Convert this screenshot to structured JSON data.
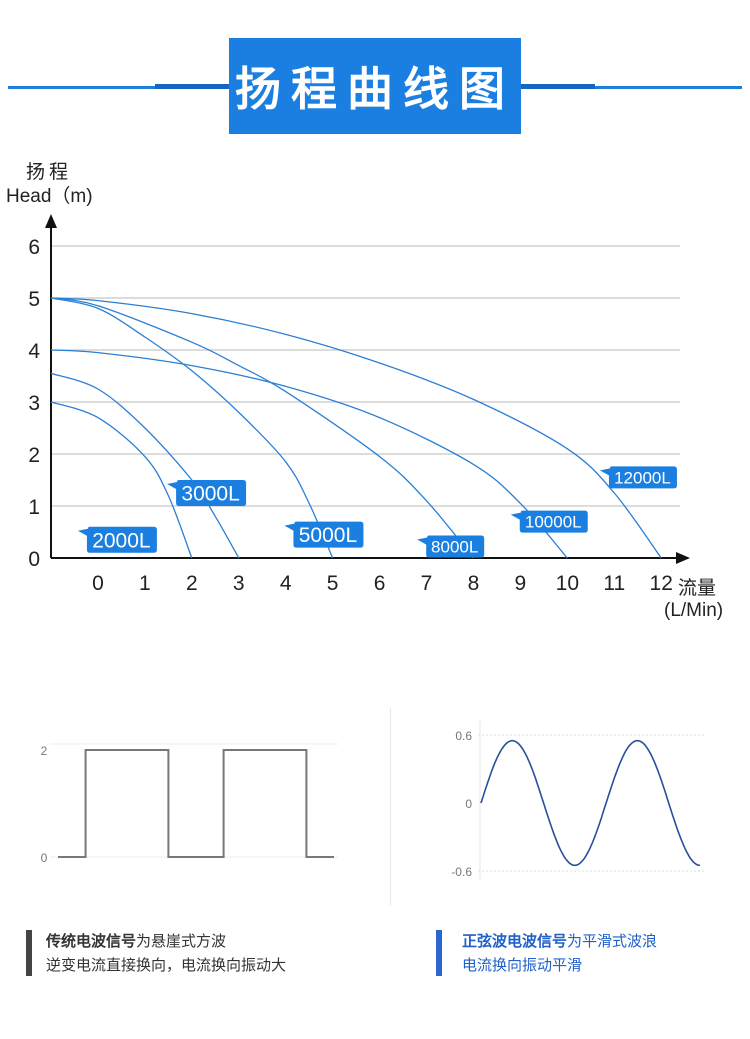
{
  "header": {
    "title": "扬程曲线图"
  },
  "chart_data": [
    {
      "type": "line",
      "title": "扬程曲线图",
      "ylabel": "扬程",
      "ylabel_en": "Head（m)",
      "xlabel": "流量",
      "xlabel_unit": "(L/Min)",
      "xlim": [
        -1,
        13
      ],
      "ylim": [
        0,
        6
      ],
      "xticks": [
        "0",
        "1",
        "2",
        "3",
        "4",
        "5",
        "6",
        "7",
        "8",
        "9",
        "10",
        "11",
        "12"
      ],
      "yticks": [
        "0",
        "1",
        "2",
        "3",
        "4",
        "5",
        "6"
      ],
      "grid": true,
      "series": [
        {
          "name": "2000L",
          "label_at": [
            0.5,
            0.35
          ],
          "label_size": "big",
          "x": [
            -1,
            0,
            1,
            1.5,
            2
          ],
          "y": [
            3.0,
            2.7,
            1.95,
            1.2,
            0
          ]
        },
        {
          "name": "3000L",
          "label_at": [
            2.4,
            1.25
          ],
          "label_size": "big",
          "x": [
            -1,
            0,
            1,
            2,
            2.5,
            3
          ],
          "y": [
            3.55,
            3.25,
            2.5,
            1.5,
            0.8,
            0
          ]
        },
        {
          "name": "5000L",
          "label_at": [
            4.9,
            0.45
          ],
          "label_size": "big",
          "x": [
            -1,
            0,
            1,
            2,
            3,
            4,
            4.5,
            5
          ],
          "y": [
            5.0,
            4.8,
            4.25,
            3.6,
            2.8,
            1.85,
            1.05,
            0
          ]
        },
        {
          "name": "8000L",
          "label_at": [
            7.6,
            0.22
          ],
          "label_size": "small",
          "x": [
            -1,
            0,
            2,
            3,
            4,
            6,
            7,
            8
          ],
          "y": [
            5.0,
            4.85,
            4.15,
            3.7,
            3.2,
            1.95,
            1.1,
            0
          ]
        },
        {
          "name": "10000L",
          "label_at": [
            9.7,
            0.7
          ],
          "label_size": "small",
          "x": [
            -1,
            0,
            2,
            4,
            6,
            8,
            9,
            10
          ],
          "y": [
            4.0,
            3.95,
            3.7,
            3.3,
            2.7,
            1.8,
            1.05,
            0
          ]
        },
        {
          "name": "12000L",
          "label_at": [
            11.6,
            1.55
          ],
          "label_size": "small",
          "x": [
            -1,
            0,
            2,
            4,
            6,
            8,
            10,
            11,
            12
          ],
          "y": [
            5.0,
            4.95,
            4.7,
            4.3,
            3.75,
            3.05,
            2.1,
            1.25,
            0
          ]
        }
      ]
    },
    {
      "type": "line",
      "title": "",
      "yticks": [
        "2",
        "0"
      ],
      "ylim": [
        0,
        2
      ],
      "series": [
        {
          "x": [
            0,
            0.1,
            0.1,
            0.4,
            0.4,
            0.6,
            0.6,
            0.9,
            0.9,
            1.0
          ],
          "y": [
            0,
            0,
            2,
            2,
            0,
            0,
            2,
            2,
            0,
            0
          ]
        }
      ]
    },
    {
      "type": "line",
      "title": "",
      "yticks": [
        "0.6",
        "0",
        "-0.6"
      ],
      "ylim": [
        -0.6,
        0.6
      ],
      "amplitude": 0.55,
      "periods": 1.75
    }
  ],
  "captions": {
    "left": {
      "strong": "传统电波信号",
      "rest": "为悬崖式方波",
      "line2": "逆变电流直接换向，电流换向振动大"
    },
    "right": {
      "strong": "正弦波电波信号",
      "rest": "为平滑式波浪",
      "line2": "电流换向振动平滑"
    }
  },
  "colors": {
    "accent": "#1a7fe0",
    "curve": "#2b7fd4",
    "grid": "#c8c8c8",
    "dark_bar": "#444444",
    "blue_bar": "#2a66cc"
  }
}
